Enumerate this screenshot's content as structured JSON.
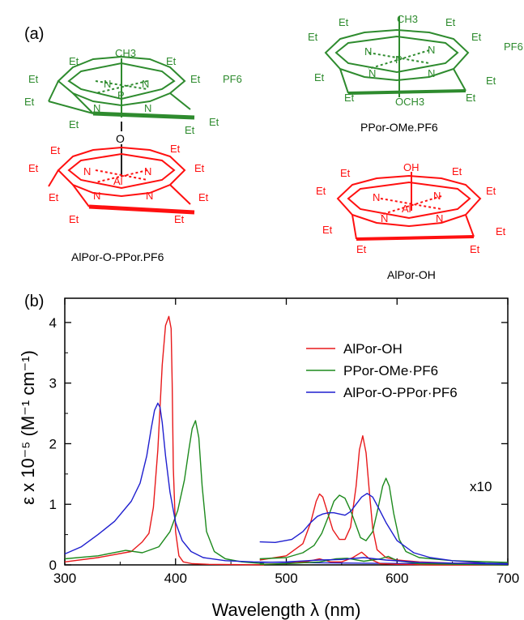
{
  "panel_a": {
    "label": "(a)",
    "compounds": [
      {
        "name": "AlPor-O-PPor.PF6",
        "top_center": "P",
        "top_axial": "CH3",
        "top_counter": "PF6",
        "bridge": "O",
        "bottom_center": "Al",
        "colors": {
          "top": "#2e8b2e",
          "bottom": "#ff1010"
        }
      },
      {
        "name": "PPor-OMe.PF6",
        "center": "P",
        "axial_top": "CH3",
        "axial_bottom": "OCH3",
        "counter": "PF6",
        "color": "#2e8b2e"
      },
      {
        "name": "AlPor-OH",
        "center": "Al",
        "axial_top": "OH",
        "color": "#ff1010"
      }
    ],
    "substituent": "Et",
    "nitrogen": "N"
  },
  "panel_b_label": "(b)",
  "chart_data": {
    "type": "line",
    "xlabel": "Wavelength λ (nm)",
    "ylabel": "ε x 10⁻⁵ (M⁻¹ cm⁻¹)",
    "xlim": [
      300,
      700
    ],
    "ylim": [
      0,
      4.4
    ],
    "xticks": [
      300,
      400,
      500,
      600,
      700
    ],
    "yticks": [
      0,
      1,
      2,
      3,
      4
    ],
    "annotation": "x10",
    "legend_position": "top-right",
    "series": [
      {
        "name": "AlPor-OH",
        "color": "#e8191b",
        "x": [
          300,
          330,
          360,
          370,
          376,
          380,
          384,
          388,
          391,
          394,
          396,
          397,
          398,
          400,
          403,
          407,
          415,
          430,
          480
        ],
        "y": [
          0.05,
          0.12,
          0.22,
          0.38,
          0.52,
          0.95,
          1.9,
          3.3,
          3.95,
          4.1,
          3.9,
          3.0,
          1.6,
          0.55,
          0.15,
          0.05,
          0.02,
          0.01,
          0.0
        ]
      },
      {
        "name": "AlPor-OH ×10",
        "color": "#e8191b",
        "x": [
          476,
          500,
          515,
          522,
          527,
          530,
          533,
          537,
          542,
          548,
          553,
          558,
          563,
          566,
          569,
          572,
          575,
          578,
          582,
          590,
          600,
          620,
          650,
          700
        ],
        "y": [
          0.08,
          0.15,
          0.35,
          0.7,
          1.05,
          1.17,
          1.12,
          0.88,
          0.58,
          0.42,
          0.42,
          0.62,
          1.3,
          1.9,
          2.13,
          1.85,
          1.2,
          0.6,
          0.25,
          0.12,
          0.08,
          0.05,
          0.03,
          0.02
        ]
      },
      {
        "name": "PPor-OMe·PF6",
        "color": "#1d8a1d",
        "x": [
          300,
          330,
          355,
          370,
          385,
          395,
          402,
          408,
          412,
          415,
          418,
          421,
          424,
          428,
          435,
          445,
          460,
          480
        ],
        "y": [
          0.1,
          0.15,
          0.24,
          0.2,
          0.3,
          0.55,
          0.9,
          1.4,
          1.9,
          2.25,
          2.38,
          2.1,
          1.3,
          0.55,
          0.22,
          0.1,
          0.05,
          0.02
        ]
      },
      {
        "name": "PPor-OMe·PF6 ×10",
        "color": "#1d8a1d",
        "x": [
          476,
          500,
          515,
          525,
          532,
          538,
          543,
          548,
          553,
          558,
          563,
          567,
          572,
          578,
          583,
          587,
          590,
          593,
          597,
          602,
          608,
          620,
          650,
          700
        ],
        "y": [
          0.1,
          0.12,
          0.2,
          0.32,
          0.52,
          0.8,
          1.05,
          1.15,
          1.1,
          0.9,
          0.65,
          0.45,
          0.4,
          0.55,
          0.95,
          1.3,
          1.43,
          1.3,
          0.85,
          0.42,
          0.22,
          0.12,
          0.07,
          0.04
        ]
      },
      {
        "name": "AlPor-O-PPor·PF6",
        "color": "#1f1fcf",
        "x": [
          300,
          315,
          330,
          345,
          360,
          368,
          374,
          378,
          381,
          384,
          386,
          388,
          391,
          395,
          400,
          406,
          414,
          425,
          445,
          470,
          500,
          560,
          620,
          700
        ],
        "y": [
          0.18,
          0.3,
          0.5,
          0.72,
          1.05,
          1.35,
          1.8,
          2.25,
          2.55,
          2.67,
          2.6,
          2.35,
          1.8,
          1.2,
          0.7,
          0.4,
          0.22,
          0.12,
          0.07,
          0.05,
          0.04,
          0.03,
          0.02,
          0.0
        ]
      },
      {
        "name": "AlPor-O-PPor·PF6 ×10",
        "color": "#1f1fcf",
        "x": [
          476,
          490,
          505,
          515,
          522,
          528,
          533,
          538,
          543,
          548,
          553,
          558,
          563,
          568,
          573,
          578,
          583,
          590,
          600,
          615,
          630,
          650,
          680,
          700
        ],
        "y": [
          0.38,
          0.37,
          0.42,
          0.55,
          0.7,
          0.8,
          0.84,
          0.86,
          0.86,
          0.84,
          0.82,
          0.88,
          1.0,
          1.12,
          1.18,
          1.12,
          0.95,
          0.7,
          0.4,
          0.2,
          0.12,
          0.07,
          0.03,
          0.02
        ]
      },
      {
        "name": "baseline-red",
        "color": "#e8191b",
        "x": [
          476,
          500,
          520,
          530,
          540,
          550,
          560,
          568,
          575,
          585,
          600,
          630,
          700
        ],
        "y": [
          0.01,
          0.02,
          0.06,
          0.1,
          0.05,
          0.05,
          0.12,
          0.21,
          0.1,
          0.02,
          0.01,
          0.0,
          0.0
        ]
      },
      {
        "name": "baseline-green",
        "color": "#1d8a1d",
        "x": [
          476,
          500,
          530,
          545,
          555,
          570,
          585,
          592,
          600,
          620,
          700
        ],
        "y": [
          0.01,
          0.02,
          0.05,
          0.1,
          0.11,
          0.06,
          0.1,
          0.14,
          0.07,
          0.02,
          0.0
        ]
      },
      {
        "name": "baseline-blue",
        "color": "#1f1fcf",
        "x": [
          476,
          500,
          530,
          550,
          570,
          590,
          620,
          700
        ],
        "y": [
          0.04,
          0.05,
          0.08,
          0.09,
          0.12,
          0.08,
          0.04,
          0.01
        ]
      }
    ],
    "legend": [
      {
        "label": "AlPor-OH",
        "color": "#e8191b"
      },
      {
        "label": "PPor-OMe·PF6",
        "color": "#1d8a1d"
      },
      {
        "label": "AlPor-O-PPor·PF6",
        "color": "#1f1fcf"
      }
    ]
  }
}
